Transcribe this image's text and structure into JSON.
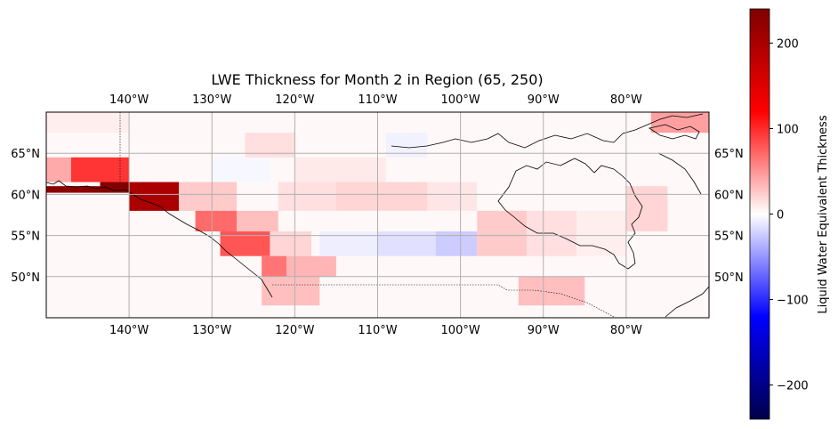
{
  "title": "LWE Thickness for Month 2 in Region (65, 250)",
  "map": {
    "lon_range": [
      -150,
      -70
    ],
    "lat_range": [
      45,
      70
    ],
    "x_ticks": [
      "140°W",
      "130°W",
      "120°W",
      "110°W",
      "100°W",
      "90°W",
      "80°W"
    ],
    "y_ticks": [
      "50°N",
      "55°N",
      "60°N",
      "65°N"
    ],
    "grid": true
  },
  "colorbar": {
    "label": "Liquid Water Equivalent Thickness",
    "colormap": "seismic",
    "vmin": -240,
    "vmax": 240,
    "ticks": [
      "200",
      "100",
      "0",
      "−100",
      "−200"
    ],
    "colors": {
      "min": "#00004c",
      "low": "#0000ff",
      "zero": "#ffffff",
      "high": "#ff0000",
      "max": "#7f0000"
    }
  },
  "chart_data": {
    "type": "heatmap",
    "title": "LWE Thickness for Month 2 in Region (65, 250)",
    "xlabel": "",
    "ylabel": "",
    "zlabel": "Liquid Water Equivalent Thickness",
    "cells": [
      {
        "lon": [
          -150,
          -143.5
        ],
        "lat": [
          61,
          60.2
        ],
        "v": 230
      },
      {
        "lon": [
          -143.5,
          -140
        ],
        "lat": [
          61.5,
          60.2
        ],
        "v": 235
      },
      {
        "lon": [
          -140,
          -134
        ],
        "lat": [
          61.5,
          58
        ],
        "v": 200
      },
      {
        "lon": [
          -150,
          -147
        ],
        "lat": [
          64.5,
          61.5
        ],
        "v": 40
      },
      {
        "lon": [
          -147,
          -140
        ],
        "lat": [
          64.5,
          61.5
        ],
        "v": 95
      },
      {
        "lon": [
          -134,
          -127
        ],
        "lat": [
          61.5,
          58
        ],
        "v": 25
      },
      {
        "lon": [
          -132,
          -127
        ],
        "lat": [
          58,
          55.5
        ],
        "v": 70
      },
      {
        "lon": [
          -127,
          -122
        ],
        "lat": [
          58,
          55.5
        ],
        "v": 30
      },
      {
        "lon": [
          -129,
          -123
        ],
        "lat": [
          55.5,
          52.5
        ],
        "v": 80
      },
      {
        "lon": [
          -123,
          -118
        ],
        "lat": [
          55.5,
          52.5
        ],
        "v": 20
      },
      {
        "lon": [
          -124,
          -121
        ],
        "lat": [
          52.5,
          50
        ],
        "v": 65
      },
      {
        "lon": [
          -121,
          -115
        ],
        "lat": [
          52.5,
          50
        ],
        "v": 35
      },
      {
        "lon": [
          -124,
          -117
        ],
        "lat": [
          50,
          46.5
        ],
        "v": 30
      },
      {
        "lon": [
          -117,
          -110
        ],
        "lat": [
          55.5,
          52.5
        ],
        "v": -8
      },
      {
        "lon": [
          -110,
          -103
        ],
        "lat": [
          55.5,
          52.5
        ],
        "v": -14
      },
      {
        "lon": [
          -103,
          -98
        ],
        "lat": [
          55.5,
          52.5
        ],
        "v": -24
      },
      {
        "lon": [
          -122,
          -115
        ],
        "lat": [
          61.5,
          58
        ],
        "v": 15
      },
      {
        "lon": [
          -115,
          -104
        ],
        "lat": [
          61.5,
          58
        ],
        "v": 20
      },
      {
        "lon": [
          -98,
          -92
        ],
        "lat": [
          58,
          52.5
        ],
        "v": 25
      },
      {
        "lon": [
          -92,
          -86
        ],
        "lat": [
          58,
          52.5
        ],
        "v": 15
      },
      {
        "lon": [
          -93,
          -85
        ],
        "lat": [
          50,
          46.5
        ],
        "v": 30
      },
      {
        "lon": [
          -80,
          -75
        ],
        "lat": [
          61,
          55.5
        ],
        "v": 20
      },
      {
        "lon": [
          -77,
          -70
        ],
        "lat": [
          70,
          67.5
        ],
        "v": 45
      },
      {
        "lon": [
          -126,
          -120
        ],
        "lat": [
          67.5,
          64.5
        ],
        "v": 15
      },
      {
        "lon": [
          -120,
          -109
        ],
        "lat": [
          64.5,
          61.5
        ],
        "v": 10
      },
      {
        "lon": [
          -109,
          -104
        ],
        "lat": [
          67.5,
          64.5
        ],
        "v": -6
      },
      {
        "lon": [
          -130,
          -123
        ],
        "lat": [
          64.5,
          61.5
        ],
        "v": -4
      },
      {
        "lon": [
          -150,
          -140
        ],
        "lat": [
          70,
          67.5
        ],
        "v": 8
      },
      {
        "lon": [
          -104,
          -98
        ],
        "lat": [
          61.5,
          58
        ],
        "v": 12
      },
      {
        "lon": [
          -86,
          -80
        ],
        "lat": [
          58,
          52.5
        ],
        "v": 8
      }
    ]
  }
}
